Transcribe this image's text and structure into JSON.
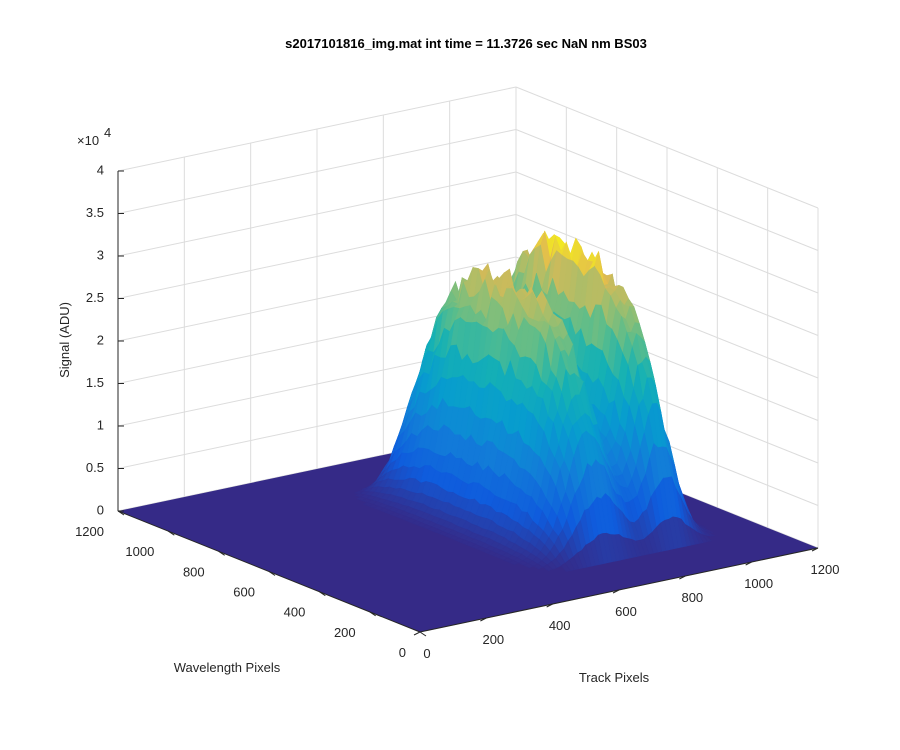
{
  "chart_data": {
    "type": "surface",
    "title": "s2017101816_img.mat int time = 11.3726 sec  NaN nm BS03",
    "xlabel": "Track Pixels",
    "ylabel": "Wavelength Pixels",
    "zlabel": "Signal (ADU)",
    "xlim": [
      0,
      1200
    ],
    "ylim": [
      0,
      1200
    ],
    "zlim": [
      0,
      40000
    ],
    "x_ticks": [
      "0",
      "200",
      "400",
      "600",
      "800",
      "1000",
      "1200"
    ],
    "y_ticks": [
      "0",
      "200",
      "400",
      "600",
      "800",
      "1000",
      "1200"
    ],
    "z_ticks": [
      "0",
      "0.5",
      "1",
      "1.5",
      "2",
      "2.5",
      "3",
      "3.5",
      "4"
    ],
    "z_exponent_label": "×10",
    "z_exponent_power": "4",
    "grid": true,
    "colormap": "parula",
    "peaks": [
      {
        "track_center": 720,
        "track_width": 120,
        "wavelength_range": [
          200,
          1000
        ],
        "max_signal": 28000
      },
      {
        "track_center": 920,
        "track_width": 90,
        "wavelength_range": [
          200,
          1000
        ],
        "max_signal": 30000
      }
    ],
    "baseline_signal": 0,
    "colors": {
      "floor": "#352a87",
      "low": "#1f8ce0",
      "mid": "#20b2aa",
      "high": "#f9fb0e"
    }
  }
}
